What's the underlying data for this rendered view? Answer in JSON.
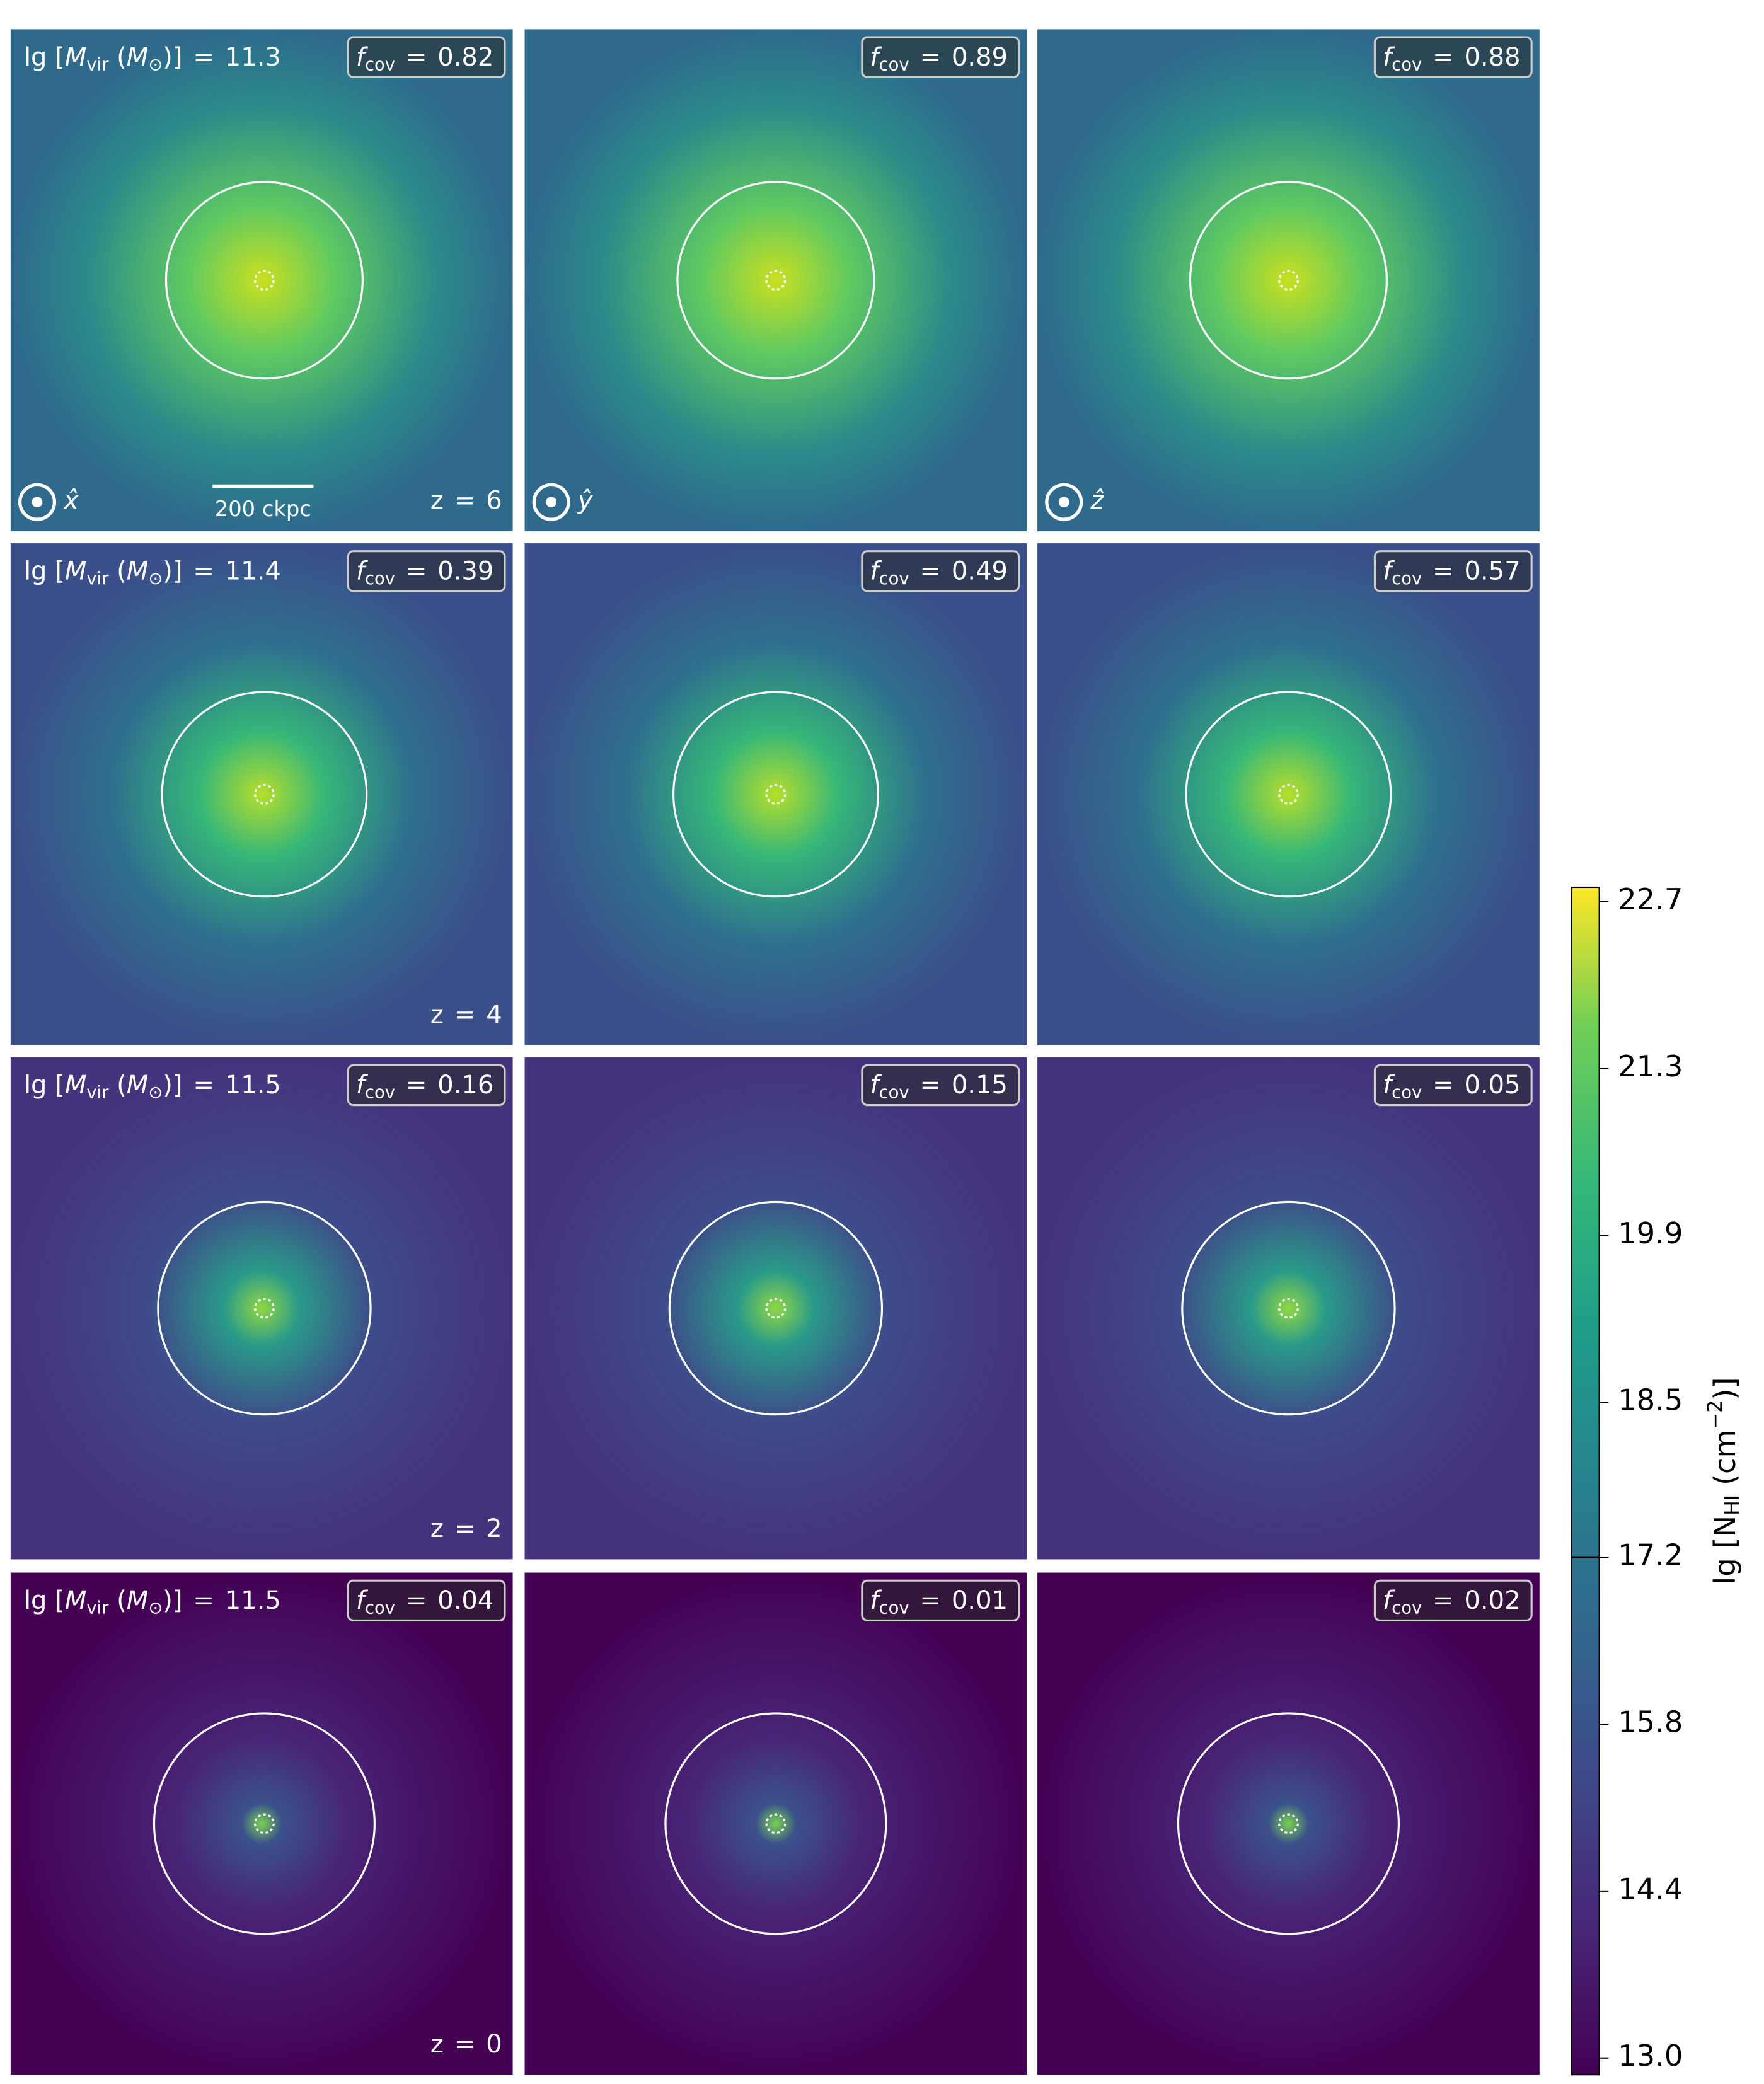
{
  "fcov_symbol": "f",
  "fcov_subscript": "cov",
  "equals": "=",
  "mass_label": {
    "pre": "lg [",
    "m": "M",
    "vir": "vir",
    "mid": " (",
    "sun": "M",
    "sun_sub": "⊙",
    "post": ")]"
  },
  "z_symbol": "z",
  "axes": [
    "x̂",
    "ŷ",
    "ẑ"
  ],
  "scale_bar": "200 ckpc",
  "rows": [
    {
      "mass": 11.3,
      "z": 6,
      "fcov": [
        0.82,
        0.89,
        0.88
      ]
    },
    {
      "mass": 11.4,
      "z": 4,
      "fcov": [
        0.39,
        0.49,
        0.57
      ]
    },
    {
      "mass": 11.5,
      "z": 2,
      "fcov": [
        0.16,
        0.15,
        0.05
      ]
    },
    {
      "mass": 11.5,
      "z": 0,
      "fcov": [
        0.04,
        0.01,
        0.02
      ]
    }
  ],
  "colorbar": {
    "label": {
      "pre": "lg [N",
      "sub": "HI",
      "mid": " (cm",
      "sup": "−2",
      "post": ")]"
    },
    "lim": [
      12.86,
      22.82
    ],
    "ticks": [
      22.7,
      21.3,
      19.9,
      18.5,
      17.2,
      15.8,
      14.4,
      {
        "value": 13.0,
        "label": "13.0"
      }
    ],
    "threshold": 17.2
  }
}
